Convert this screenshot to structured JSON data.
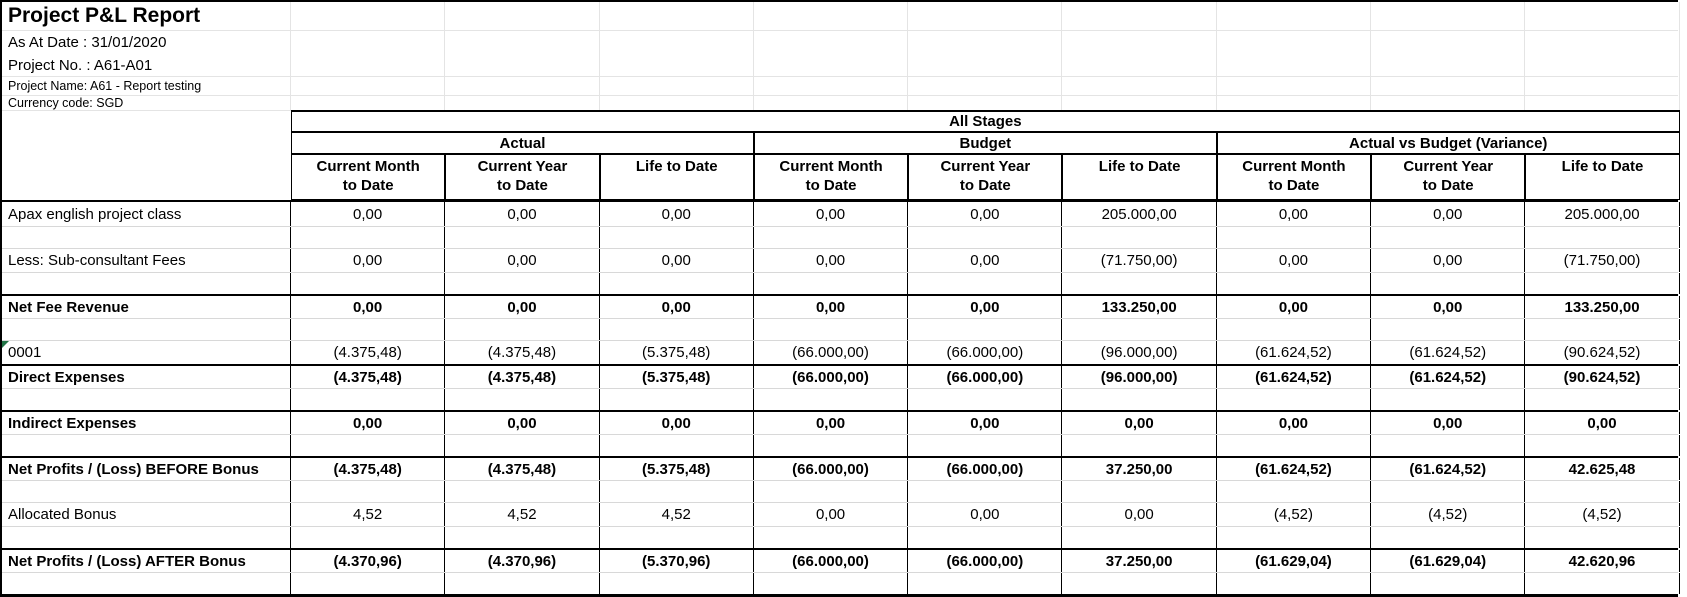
{
  "report": {
    "title": "Project P&L Report",
    "meta": {
      "as_at_date": "As At Date : 31/01/2020",
      "project_no": "Project No. : A61-A01",
      "project_name": "Project Name: A61 - Report testing",
      "currency_code": "Currency code: SGD"
    }
  },
  "colors": {
    "grid_border": "#000000",
    "row_gridline": "#d8d8d8",
    "error_triangle": "#217346"
  },
  "table": {
    "stage_header": "All Stages",
    "groups": [
      "Actual",
      "Budget",
      "Actual vs Budget (Variance)"
    ],
    "col_headers": [
      "Current Month\nto Date",
      "Current Year\nto Date",
      "Life to Date",
      "Current Month\nto Date",
      "Current Year\nto Date",
      "Life to Date",
      "Current Month\nto Date",
      "Current Year\nto Date",
      "Life to Date"
    ],
    "rows": [
      {
        "type": "data",
        "label": "Apax english project class",
        "bold": false,
        "section": false,
        "marker": false,
        "values": [
          "0,00",
          "0,00",
          "0,00",
          "0,00",
          "0,00",
          "205.000,00",
          "0,00",
          "0,00",
          "205.000,00"
        ]
      },
      {
        "type": "blank"
      },
      {
        "type": "data",
        "label": "Less: Sub-consultant Fees",
        "bold": false,
        "section": false,
        "marker": false,
        "values": [
          "0,00",
          "0,00",
          "0,00",
          "0,00",
          "0,00",
          "(71.750,00)",
          "0,00",
          "0,00",
          "(71.750,00)"
        ]
      },
      {
        "type": "blank"
      },
      {
        "type": "data",
        "label": "Net Fee Revenue",
        "bold": true,
        "section": true,
        "marker": false,
        "values": [
          "0,00",
          "0,00",
          "0,00",
          "0,00",
          "0,00",
          "133.250,00",
          "0,00",
          "0,00",
          "133.250,00"
        ]
      },
      {
        "type": "blank"
      },
      {
        "type": "data",
        "label": "0001",
        "bold": false,
        "section": false,
        "marker": true,
        "values": [
          "(4.375,48)",
          "(4.375,48)",
          "(5.375,48)",
          "(66.000,00)",
          "(66.000,00)",
          "(96.000,00)",
          "(61.624,52)",
          "(61.624,52)",
          "(90.624,52)"
        ]
      },
      {
        "type": "data",
        "label": "Direct Expenses",
        "bold": true,
        "section": true,
        "marker": false,
        "values": [
          "(4.375,48)",
          "(4.375,48)",
          "(5.375,48)",
          "(66.000,00)",
          "(66.000,00)",
          "(96.000,00)",
          "(61.624,52)",
          "(61.624,52)",
          "(90.624,52)"
        ]
      },
      {
        "type": "blank"
      },
      {
        "type": "data",
        "label": "Indirect Expenses",
        "bold": true,
        "section": true,
        "marker": false,
        "values": [
          "0,00",
          "0,00",
          "0,00",
          "0,00",
          "0,00",
          "0,00",
          "0,00",
          "0,00",
          "0,00"
        ]
      },
      {
        "type": "blank"
      },
      {
        "type": "data",
        "label": "Net Profits / (Loss) BEFORE Bonus",
        "bold": true,
        "section": true,
        "marker": false,
        "values": [
          "(4.375,48)",
          "(4.375,48)",
          "(5.375,48)",
          "(66.000,00)",
          "(66.000,00)",
          "37.250,00",
          "(61.624,52)",
          "(61.624,52)",
          "42.625,48"
        ]
      },
      {
        "type": "blank"
      },
      {
        "type": "data",
        "label": "Allocated Bonus",
        "bold": false,
        "section": false,
        "marker": false,
        "values": [
          "4,52",
          "4,52",
          "4,52",
          "0,00",
          "0,00",
          "0,00",
          "(4,52)",
          "(4,52)",
          "(4,52)"
        ]
      },
      {
        "type": "blank"
      },
      {
        "type": "data",
        "label": "Net Profits / (Loss) AFTER Bonus",
        "bold": true,
        "section": true,
        "marker": false,
        "values": [
          "(4.370,96)",
          "(4.370,96)",
          "(5.370,96)",
          "(66.000,00)",
          "(66.000,00)",
          "37.250,00",
          "(61.629,04)",
          "(61.629,04)",
          "42.620,96"
        ]
      },
      {
        "type": "blank"
      }
    ]
  }
}
